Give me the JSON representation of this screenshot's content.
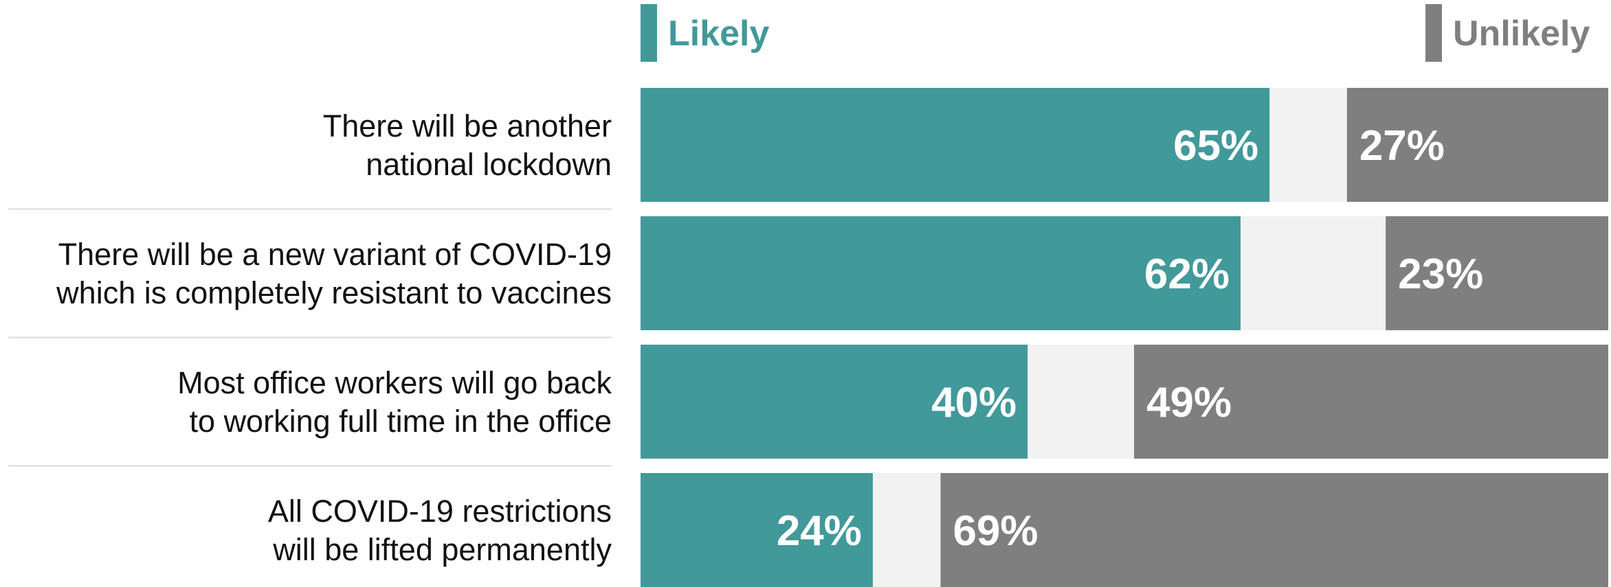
{
  "chart_data": {
    "type": "bar",
    "orientation": "horizontal",
    "stacked": "diverging",
    "categories": [
      "There will be another national lockdown",
      "There will be a new variant of COVID-19 which is completely resistant to vaccines",
      "Most office workers will go back to working full time in the office",
      "All COVID-19 restrictions will be lifted permanently"
    ],
    "category_lines": [
      [
        "There will be another",
        "national lockdown"
      ],
      [
        "There will be a new variant of COVID-19",
        "which is completely resistant to vaccines"
      ],
      [
        "Most office workers will go back",
        "to working full time in the office"
      ],
      [
        "All COVID-19 restrictions",
        "will be lifted permanently"
      ]
    ],
    "series": [
      {
        "name": "Likely",
        "values": [
          65,
          62,
          40,
          24
        ],
        "labels": [
          "65%",
          "62%",
          "40%",
          "24%"
        ],
        "color": "#429999"
      },
      {
        "name": "Unlikely",
        "values": [
          27,
          23,
          49,
          69
        ],
        "labels": [
          "27%",
          "23%",
          "49%",
          "69%"
        ],
        "color": "#7f7f7f"
      }
    ],
    "remainder_color": "#f2f2f2",
    "separator_color": "#d9d9d9",
    "value_unit": "%",
    "xlim": [
      0,
      100
    ],
    "legend_placement": "top",
    "grid": false
  }
}
